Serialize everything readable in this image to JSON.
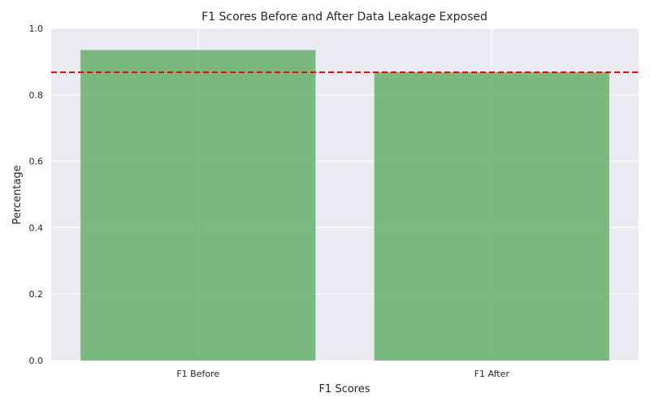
{
  "chart_data": {
    "type": "bar",
    "title": "F1 Scores Before and After Data Leakage Exposed",
    "xlabel": "F1 Scores",
    "ylabel": "Percentage",
    "categories": [
      "F1 Before",
      "F1 After"
    ],
    "values": [
      0.935,
      0.868
    ],
    "ylim": [
      0,
      1.0
    ],
    "yticks": [
      "0.0",
      "0.2",
      "0.4",
      "0.6",
      "0.8",
      "1.0"
    ],
    "reference_line": {
      "y": 0.868,
      "style": "dashed",
      "color": "#ff0000"
    },
    "grid": true,
    "colors": {
      "bar": "#5aaa5e",
      "background": "#eaeaf2",
      "grid": "#ffffff"
    }
  }
}
